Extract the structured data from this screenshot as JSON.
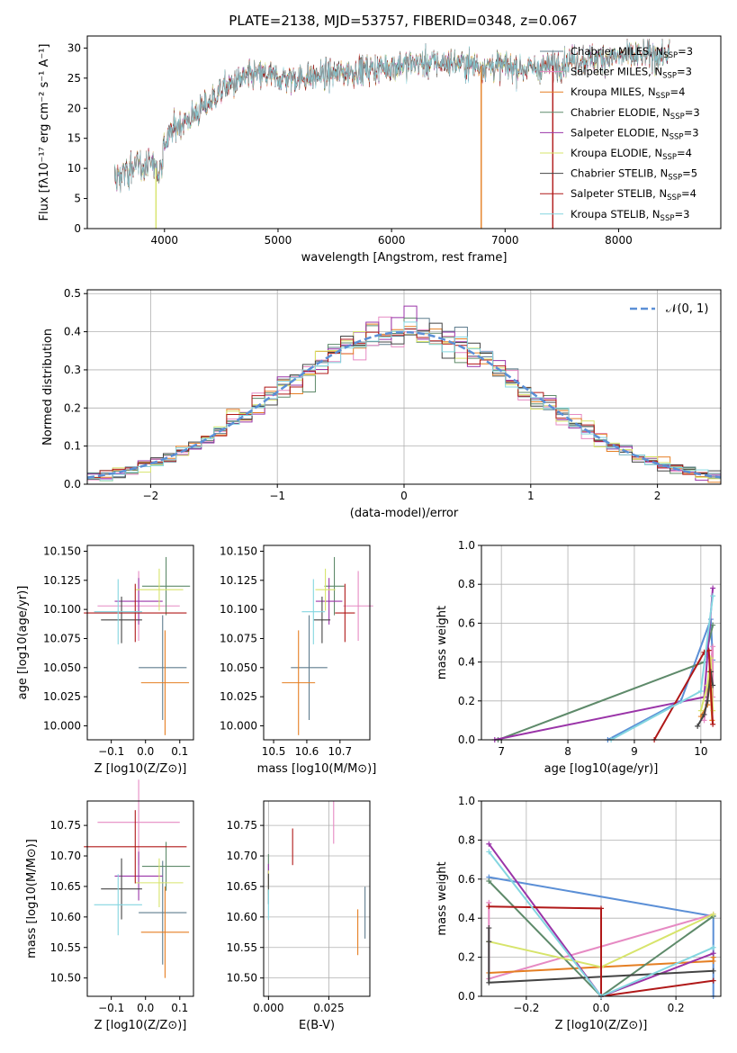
{
  "figure_title": "PLATE=2138, MJD=53757, FIBERID=0348, z=0.067",
  "model_colors": {
    "Chabrier MILES": "#5f7d8e",
    "Salpeter MILES": "#e68ac3",
    "Kroupa MILES": "#e57f23",
    "Chabrier ELODIE": "#5e8a6a",
    "Salpeter ELODIE": "#9a34a8",
    "Kroupa ELODIE": "#d7e46b",
    "Chabrier STELIB": "#444444",
    "Salpeter STELIB": "#b01818",
    "Kroupa STELIB": "#84d6e0",
    "normal_curve": "#5b8fd6"
  },
  "chart_data": [
    {
      "id": "spectrum",
      "type": "line",
      "title": "PLATE=2138, MJD=53757, FIBERID=0348, z=0.067",
      "xlabel": "wavelength [Angstrom, rest frame]",
      "ylabel": "Flux [fλ10⁻¹⁷ erg cm⁻² s⁻¹ A⁻¹]",
      "xlim": [
        3320,
        8900
      ],
      "ylim": [
        0,
        32
      ],
      "xticks": [
        4000,
        5000,
        6000,
        7000,
        8000
      ],
      "yticks": [
        0,
        5,
        10,
        15,
        20,
        25,
        30
      ],
      "grid": false,
      "legend_position": "top-right",
      "legend": [
        {
          "label": "Chabrier MILES, N_SSP=3",
          "color": "#5f7d8e"
        },
        {
          "label": "Salpeter MILES, N_SSP=3",
          "color": "#e68ac3"
        },
        {
          "label": "Kroupa MILES, N_SSP=4",
          "color": "#e57f23"
        },
        {
          "label": "Chabrier ELODIE, N_SSP=3",
          "color": "#5e8a6a"
        },
        {
          "label": "Salpeter ELODIE, N_SSP=3",
          "color": "#9a34a8"
        },
        {
          "label": "Kroupa ELODIE, N_SSP=4",
          "color": "#d7e46b"
        },
        {
          "label": "Chabrier STELIB, N_SSP=5",
          "color": "#444444"
        },
        {
          "label": "Salpeter STELIB, N_SSP=4",
          "color": "#b01818"
        },
        {
          "label": "Kroupa STELIB, N_SSP=3",
          "color": "#84d6e0"
        }
      ],
      "continuum": {
        "x": [
          3560,
          3700,
          3800,
          3900,
          3950,
          4000,
          4100,
          4200,
          4300,
          4400,
          4500,
          4600,
          4700,
          4800,
          4900,
          5000,
          5200,
          5400,
          5600,
          5800,
          6000,
          6200,
          6400,
          6600,
          6800,
          7000,
          7200,
          7400,
          7600,
          8000,
          8400
        ],
        "y": [
          8,
          10,
          10.5,
          11,
          9,
          14,
          17,
          18,
          19.5,
          21,
          23,
          24,
          25,
          25.5,
          25.5,
          25,
          25,
          25.5,
          26,
          26.5,
          27,
          27.5,
          27.5,
          27.5,
          27,
          27,
          26.5,
          27,
          28,
          28.5,
          29
        ]
      },
      "dropouts": [
        {
          "x": 3925,
          "y": 0,
          "color": "#d7e46b"
        },
        {
          "x": 6790,
          "y": 0,
          "color": "#e57f23"
        },
        {
          "x": 7420,
          "y": 0,
          "color": "#b01818"
        }
      ]
    },
    {
      "id": "residual_hist",
      "type": "line",
      "xlabel": "(data-model)/error",
      "ylabel": "Normed distribution",
      "xlim": [
        -2.5,
        2.5
      ],
      "ylim": [
        0,
        0.51
      ],
      "xticks": [
        -2,
        -1,
        0,
        1,
        2
      ],
      "yticks": [
        0.0,
        0.1,
        0.2,
        0.3,
        0.4,
        0.5
      ],
      "grid": true,
      "legend_position": "top-right",
      "legend": [
        {
          "label": "𝒩(0, 1)",
          "color": "#5b8fd6"
        }
      ],
      "bin_width": 0.1,
      "curve": "normal pdf, mean 0, sd 1"
    },
    {
      "id": "z_vs_age",
      "type": "scatter",
      "xlabel": "Z [log10(Z/Z⊙)]",
      "ylabel": "age  [log10(age/yr)]",
      "xlim": [
        -0.17,
        0.14
      ],
      "ylim": [
        9.988,
        10.155
      ],
      "xticks": [
        -0.1,
        0.0,
        0.1
      ],
      "yticks": [
        10.0,
        10.025,
        10.05,
        10.075,
        10.1,
        10.125,
        10.15
      ],
      "grid": false
    },
    {
      "id": "mass_vs_age",
      "type": "scatter",
      "xlabel": "mass [log10(M/M⊙)]",
      "ylabel": "",
      "xlim": [
        10.47,
        10.79
      ],
      "ylim": [
        9.988,
        10.155
      ],
      "xticks": [
        10.5,
        10.6,
        10.7
      ],
      "yticks": [
        10.0,
        10.025,
        10.05,
        10.075,
        10.1,
        10.125,
        10.15
      ],
      "grid": false
    },
    {
      "id": "age_vs_weight",
      "type": "line",
      "xlabel": "age  [log10(age/yr)]",
      "ylabel": "mass weight",
      "xlim": [
        6.7,
        10.3
      ],
      "ylim": [
        0,
        1
      ],
      "xticks": [
        7,
        8,
        9,
        10
      ],
      "yticks": [
        0.0,
        0.2,
        0.4,
        0.6,
        0.8,
        1.0
      ],
      "grid": true
    },
    {
      "id": "z_vs_mass",
      "type": "scatter",
      "xlabel": "Z [log10(Z/Z⊙)]",
      "ylabel": "mass [log10(M/M⊙)]",
      "xlim": [
        -0.17,
        0.14
      ],
      "ylim": [
        10.47,
        10.79
      ],
      "xticks": [
        -0.1,
        0.0,
        0.1
      ],
      "yticks": [
        10.5,
        10.55,
        10.6,
        10.65,
        10.7,
        10.75
      ],
      "grid": false
    },
    {
      "id": "ebv_vs_mass",
      "type": "scatter",
      "xlabel": "E(B-V)",
      "ylabel": "",
      "xlim": [
        -0.002,
        0.042
      ],
      "ylim": [
        10.47,
        10.79
      ],
      "xticks": [
        0.0,
        0.025
      ],
      "yticks": [
        10.5,
        10.55,
        10.6,
        10.65,
        10.7,
        10.75
      ],
      "grid": true
    },
    {
      "id": "z_vs_weight",
      "type": "line",
      "xlabel": "Z [log10(Z/Z⊙)]",
      "ylabel": "mass weight",
      "xlim": [
        -0.32,
        0.32
      ],
      "ylim": [
        0,
        1
      ],
      "xticks": [
        -0.2,
        0.0,
        0.2
      ],
      "yticks": [
        0.0,
        0.2,
        0.4,
        0.6,
        0.8,
        1.0
      ],
      "grid": true
    }
  ],
  "fits": [
    {
      "color": "#5f7d8e",
      "Z": 0.05,
      "Zerr": 0.07,
      "age": 10.05,
      "ageErr": 0.045,
      "mass": 10.607,
      "massErr": 0.085,
      "mErr": 0.055,
      "ebv": 0.04,
      "ebvErr": 0.04
    },
    {
      "color": "#e68ac3",
      "Z": -0.02,
      "Zerr": 0.12,
      "age": 10.103,
      "ageErr": 0.03,
      "mass": 10.755,
      "massErr": 0.07,
      "mErr": 0.045,
      "ebv": 0.027,
      "ebvErr": 0.045
    },
    {
      "color": "#e57f23",
      "Z": 0.057,
      "Zerr": 0.07,
      "age": 10.037,
      "ageErr": 0.045,
      "mass": 10.575,
      "massErr": 0.075,
      "mErr": 0.05,
      "ebv": 0.037,
      "ebvErr": 0.06
    },
    {
      "color": "#5e8a6a",
      "Z": 0.06,
      "Zerr": 0.07,
      "age": 10.12,
      "ageErr": 0.025,
      "mass": 10.683,
      "massErr": 0.04,
      "mErr": 0.03,
      "ebv": 0.0,
      "ebvErr": 0.05
    },
    {
      "color": "#9a34a8",
      "Z": -0.02,
      "Zerr": 0.07,
      "age": 10.107,
      "ageErr": 0.02,
      "mass": 10.667,
      "massErr": 0.04,
      "mErr": 0.04,
      "ebv": 0.0,
      "ebvErr": 0.06
    },
    {
      "color": "#d7e46b",
      "Z": 0.04,
      "Zerr": 0.07,
      "age": 10.117,
      "ageErr": 0.018,
      "mass": 10.656,
      "massErr": 0.04,
      "mErr": 0.03,
      "ebv": 0.0,
      "ebvErr": 0.04
    },
    {
      "color": "#444444",
      "Z": -0.07,
      "Zerr": 0.06,
      "age": 10.091,
      "ageErr": 0.02,
      "mass": 10.646,
      "massErr": 0.05,
      "mErr": 0.025,
      "ebv": 0.0,
      "ebvErr": 0.03
    },
    {
      "color": "#b01818",
      "Z": -0.03,
      "Zerr": 0.15,
      "age": 10.097,
      "ageErr": 0.025,
      "mass": 10.715,
      "massErr": 0.06,
      "mErr": 0.03,
      "ebv": 0.01,
      "ebvErr": 0.05
    },
    {
      "color": "#84d6e0",
      "Z": -0.08,
      "Zerr": 0.07,
      "age": 10.098,
      "ageErr": 0.028,
      "mass": 10.62,
      "massErr": 0.05,
      "mErr": 0.035,
      "ebv": 0.0,
      "ebvErr": 0.04
    }
  ],
  "ssp_components": [
    {
      "color": "#5b8fd6",
      "points": [
        [
          8.6,
          0.0
        ],
        [
          9.7,
          0.2
        ],
        [
          10.15,
          0.62
        ],
        [
          10.18,
          0.41
        ]
      ],
      "zpoints": [
        [
          -0.3,
          0.61
        ],
        [
          0.3,
          0.41
        ],
        [
          0.3,
          0.0
        ]
      ]
    },
    {
      "color": "#e68ac3",
      "points": [
        [
          10.05,
          0.1
        ],
        [
          10.18,
          0.48
        ],
        [
          10.18,
          0.22
        ]
      ],
      "zpoints": [
        [
          -0.3,
          0.48
        ],
        [
          -0.3,
          0.09
        ],
        [
          0.3,
          0.42
        ]
      ]
    },
    {
      "color": "#e57f23",
      "points": [
        [
          10.0,
          0.12
        ],
        [
          10.1,
          0.18
        ],
        [
          10.13,
          0.35
        ],
        [
          10.17,
          0.1
        ]
      ],
      "zpoints": [
        [
          -0.3,
          0.12
        ],
        [
          0.3,
          0.18
        ],
        [
          0.3,
          0.2
        ]
      ]
    },
    {
      "color": "#5e8a6a",
      "points": [
        [
          6.95,
          0.0
        ],
        [
          10.05,
          0.4
        ],
        [
          10.18,
          0.59
        ]
      ],
      "zpoints": [
        [
          -0.3,
          0.59
        ],
        [
          0.0,
          0.0
        ],
        [
          0.3,
          0.41
        ]
      ]
    },
    {
      "color": "#9a34a8",
      "points": [
        [
          6.9,
          0.0
        ],
        [
          10.05,
          0.22
        ],
        [
          10.18,
          0.78
        ]
      ],
      "zpoints": [
        [
          -0.3,
          0.78
        ],
        [
          0.0,
          0.0
        ],
        [
          0.3,
          0.22
        ]
      ]
    },
    {
      "color": "#d7e46b",
      "points": [
        [
          10.0,
          0.15
        ],
        [
          10.1,
          0.28
        ],
        [
          10.15,
          0.42
        ],
        [
          10.18,
          0.15
        ]
      ],
      "zpoints": [
        [
          -0.3,
          0.28
        ],
        [
          0.0,
          0.15
        ],
        [
          0.3,
          0.42
        ]
      ]
    },
    {
      "color": "#444444",
      "points": [
        [
          9.95,
          0.07
        ],
        [
          10.05,
          0.13
        ],
        [
          10.1,
          0.2
        ],
        [
          10.15,
          0.35
        ],
        [
          10.18,
          0.28
        ]
      ],
      "zpoints": [
        [
          -0.3,
          0.35
        ],
        [
          -0.3,
          0.28
        ],
        [
          -0.3,
          0.07
        ],
        [
          0.3,
          0.13
        ]
      ]
    },
    {
      "color": "#b01818",
      "points": [
        [
          9.3,
          0.0
        ],
        [
          10.05,
          0.45
        ],
        [
          10.12,
          0.46
        ],
        [
          10.18,
          0.08
        ]
      ],
      "zpoints": [
        [
          -0.3,
          0.46
        ],
        [
          0.0,
          0.45
        ],
        [
          0.0,
          0.0
        ],
        [
          0.3,
          0.08
        ]
      ]
    },
    {
      "color": "#84d6e0",
      "points": [
        [
          8.65,
          0.0
        ],
        [
          10.0,
          0.25
        ],
        [
          10.18,
          0.74
        ]
      ],
      "zpoints": [
        [
          -0.3,
          0.74
        ],
        [
          0.0,
          0.0
        ],
        [
          0.3,
          0.25
        ]
      ]
    }
  ]
}
